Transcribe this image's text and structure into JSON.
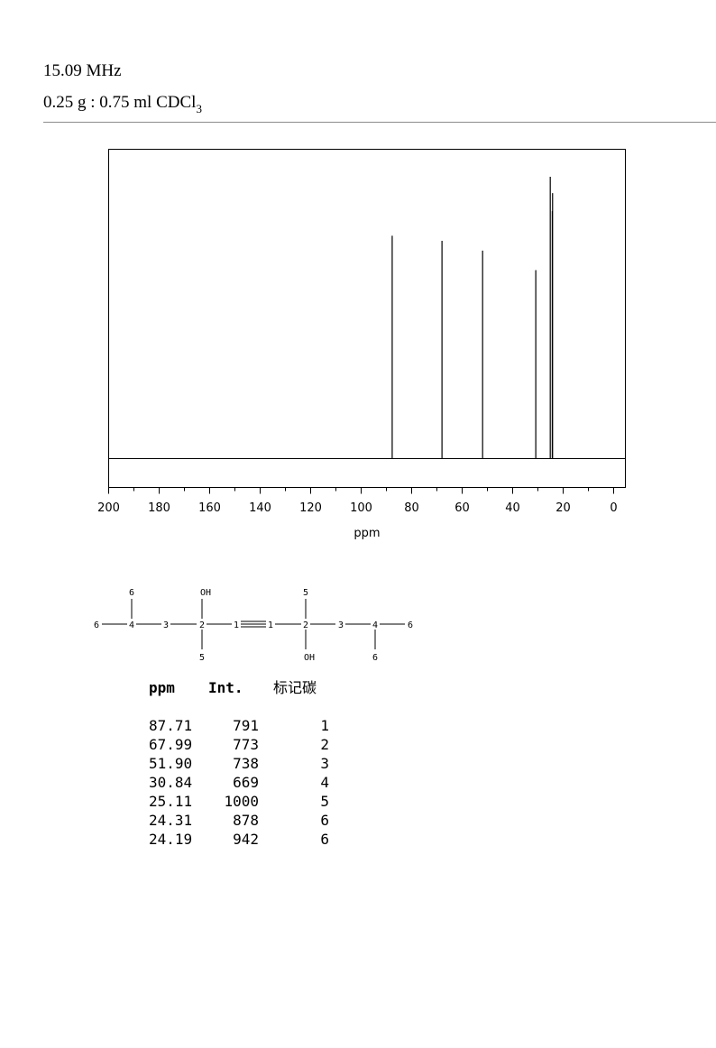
{
  "header": {
    "frequency": "15.09 MHz",
    "sample_main": "0.25 g : 0.75 ml CDCl",
    "sample_subscript": "3"
  },
  "chart_data": {
    "type": "line",
    "title": "",
    "xlabel": "ppm",
    "ylabel": "",
    "xlim": [
      200,
      0
    ],
    "x_ticks": [
      200,
      180,
      160,
      140,
      120,
      100,
      80,
      60,
      40,
      20,
      0
    ],
    "x_tick_labels": [
      "200",
      "180",
      "160",
      "140",
      "120",
      "100",
      "80",
      "60",
      "40",
      "20",
      "0"
    ],
    "peaks": [
      {
        "ppm": 87.71,
        "intensity": 791
      },
      {
        "ppm": 67.99,
        "intensity": 773
      },
      {
        "ppm": 51.9,
        "intensity": 738
      },
      {
        "ppm": 30.84,
        "intensity": 669
      },
      {
        "ppm": 25.11,
        "intensity": 1000
      },
      {
        "ppm": 24.31,
        "intensity": 878
      },
      {
        "ppm": 24.19,
        "intensity": 942
      }
    ],
    "ylim": [
      0,
      1000
    ],
    "grid": false
  },
  "structure": {
    "labels": [
      "6",
      "6",
      "4",
      "3",
      "2",
      "OH",
      "5",
      "1",
      "1",
      "5",
      "2",
      "OH",
      "3",
      "4",
      "6",
      "6"
    ]
  },
  "table": {
    "headers": [
      "ppm",
      "Int.",
      "标记碳"
    ],
    "rows": [
      [
        "87.71",
        "791",
        "1"
      ],
      [
        "67.99",
        "773",
        "2"
      ],
      [
        "51.90",
        "738",
        "3"
      ],
      [
        "30.84",
        "669",
        "4"
      ],
      [
        "25.11",
        "1000",
        "5"
      ],
      [
        "24.31",
        "878",
        "6"
      ],
      [
        "24.19",
        "942",
        "6"
      ]
    ]
  }
}
